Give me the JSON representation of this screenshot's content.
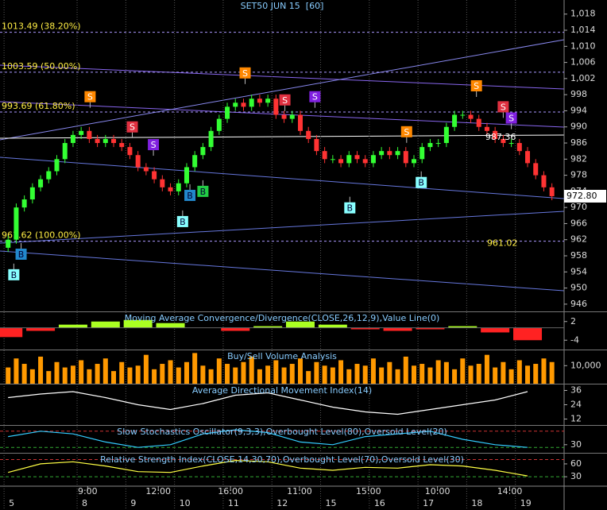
{
  "chart_data": [
    {
      "type": "candlestick",
      "title": "SET50 JUN 15  [60]",
      "xlim": [
        -1,
        68.5
      ],
      "ylim": [
        944.2,
        1021.5
      ],
      "yticks": [
        946,
        950,
        954,
        958,
        962,
        966,
        970,
        974,
        978,
        982,
        986,
        990,
        994,
        998,
        {
          "value": 1002,
          "label": "1,002"
        },
        {
          "value": 1006,
          "label": "1,006"
        },
        {
          "value": 1010,
          "label": "1,010"
        },
        {
          "value": 1014,
          "label": "1,014"
        },
        {
          "value": 1018,
          "label": "1,018"
        }
      ],
      "open": [
        960,
        962,
        970,
        972,
        975,
        977,
        979,
        982,
        986,
        988,
        989,
        987,
        986,
        987,
        986,
        985,
        983,
        980,
        979,
        977,
        975,
        974,
        976,
        980,
        983,
        985,
        989,
        992,
        995,
        996,
        995,
        997,
        996,
        997,
        993,
        992,
        993,
        989,
        987,
        984,
        982,
        982,
        981,
        983,
        982,
        981,
        983,
        984,
        983,
        984,
        981,
        982,
        985,
        986,
        986,
        990,
        993,
        993,
        992,
        990,
        989,
        987,
        986,
        986,
        984,
        981,
        978,
        975
      ],
      "high": [
        963,
        971,
        973,
        976,
        978,
        980,
        983,
        987,
        989,
        990,
        990,
        988,
        988,
        988,
        987,
        986,
        984,
        981,
        980,
        978,
        976,
        977,
        981,
        984,
        986,
        990,
        993,
        996,
        997,
        997,
        998,
        998,
        998,
        998,
        994,
        994,
        994,
        990,
        988,
        985,
        983,
        983,
        984,
        984,
        983,
        984,
        985,
        985,
        985,
        985,
        983,
        986,
        987,
        987,
        991,
        994,
        994,
        994,
        993,
        991,
        990,
        988,
        987,
        987,
        985,
        982,
        979,
        976
      ],
      "low": [
        959,
        961,
        969,
        971,
        974,
        976,
        978,
        981,
        985,
        987,
        986,
        985,
        985,
        985,
        984,
        982,
        979,
        978,
        976,
        974,
        973,
        973,
        975,
        979,
        982,
        984,
        988,
        991,
        994,
        994,
        994,
        995,
        995,
        992,
        991,
        991,
        988,
        986,
        983,
        981,
        981,
        980,
        980,
        981,
        980,
        980,
        982,
        982,
        982,
        980,
        980,
        981,
        984,
        985,
        985,
        989,
        992,
        991,
        989,
        988,
        986,
        985,
        985,
        983,
        980,
        977,
        974,
        971.8
      ],
      "close": [
        962,
        970,
        972,
        975,
        977,
        979,
        982,
        986,
        988,
        989,
        987,
        986,
        987,
        986,
        985,
        983,
        980,
        979,
        977,
        975,
        974,
        976,
        980,
        983,
        985,
        989,
        992,
        995,
        996,
        995,
        997,
        996,
        997,
        993,
        992,
        993,
        989,
        987,
        984,
        982,
        982,
        981,
        983,
        982,
        981,
        983,
        984,
        983,
        984,
        981,
        982,
        985,
        986,
        986,
        990,
        993,
        993,
        992,
        990,
        989,
        987,
        986,
        986,
        984,
        981,
        978,
        975,
        972.8
      ],
      "up_color": "#33ff33",
      "down_color": "#ff3333",
      "fib_levels": [
        {
          "value": 1013.49,
          "label": "1013.49 (38.20%)"
        },
        {
          "value": 1003.59,
          "label": "1003.59 (50.00%)"
        },
        {
          "value": 993.69,
          "label": "993.69 (61.80%)"
        },
        {
          "value": 961.62,
          "label": "961.62 (100.00%)"
        }
      ],
      "annotations": [
        {
          "x": 59,
          "y": 961.02
        },
        {
          "x": 58.8,
          "y": 987.36
        }
      ],
      "last_price": {
        "value": 972.8,
        "label": "972.80"
      },
      "signals": [
        {
          "label": "S",
          "x": 10.1,
          "y": 997.5,
          "color": "#ff8800"
        },
        {
          "label": "S",
          "x": 15.3,
          "y": 990,
          "color": "#e03040"
        },
        {
          "label": "S",
          "x": 17.9,
          "y": 985.6,
          "color": "#8020e0"
        },
        {
          "label": "B",
          "x": 21.5,
          "y": 966.5,
          "color": "#88ffff"
        },
        {
          "label": "B",
          "x": 22.4,
          "y": 973,
          "color": "#2288cc"
        },
        {
          "label": "B",
          "x": 24,
          "y": 974,
          "color": "#22cc44"
        },
        {
          "label": "S",
          "x": 29.2,
          "y": 1003.4,
          "color": "#ff8800"
        },
        {
          "label": "S",
          "x": 34.1,
          "y": 996.7,
          "color": "#e03040"
        },
        {
          "label": "S",
          "x": 37.8,
          "y": 997.5,
          "color": "#8020e0"
        },
        {
          "label": "B",
          "x": 42.1,
          "y": 969.9,
          "color": "#88ffff"
        },
        {
          "label": "S",
          "x": 49.1,
          "y": 988.8,
          "color": "#ff8800"
        },
        {
          "label": "B",
          "x": 50.9,
          "y": 976.2,
          "color": "#88ffff"
        },
        {
          "label": "S",
          "x": 57.7,
          "y": 1000.2,
          "color": "#ff8800"
        },
        {
          "label": "S",
          "x": 61,
          "y": 995,
          "color": "#e03040"
        },
        {
          "label": "S",
          "x": 62,
          "y": 992.2,
          "color": "#8020e0"
        },
        {
          "label": "B",
          "x": 1.6,
          "y": 958.4,
          "color": "#2288cc"
        },
        {
          "label": "B",
          "x": 0.7,
          "y": 953.3,
          "color": "#88ffff"
        }
      ],
      "day_ticks": [
        {
          "value": -0.5,
          "label": "5"
        },
        {
          "value": 8.5,
          "label": "8"
        },
        {
          "value": 14.5,
          "label": "9"
        },
        {
          "value": 20.5,
          "label": "10"
        },
        {
          "value": 26.5,
          "label": "11"
        },
        {
          "value": 32.5,
          "label": "12"
        },
        {
          "value": 38.5,
          "label": "15"
        },
        {
          "value": 44.5,
          "label": "16"
        },
        {
          "value": 50.5,
          "label": "17"
        },
        {
          "value": 56.5,
          "label": "18"
        },
        {
          "value": 62.5,
          "label": "19"
        }
      ],
      "time_ticks": [
        {
          "value": 9.8,
          "label": "9:00"
        },
        {
          "value": 18.5,
          "label": "12:00"
        },
        {
          "value": 27.4,
          "label": "16:00"
        },
        {
          "value": 35.9,
          "label": "11:00"
        },
        {
          "value": 44.4,
          "label": "15:00"
        },
        {
          "value": 52.9,
          "label": "10:00"
        },
        {
          "value": 61.8,
          "label": "14:00"
        }
      ]
    },
    {
      "type": "bar",
      "title": "Moving Average Convergence/Divergence(CLOSE,26,12,9),Value Line(0)",
      "ylim": [
        -7,
        5
      ],
      "yticks": [
        2,
        -4
      ],
      "x": [
        0,
        4,
        8,
        12,
        16,
        20,
        24,
        28,
        32,
        36,
        40,
        44,
        48,
        52,
        56,
        60,
        64
      ],
      "values": [
        -3,
        -1,
        1,
        2,
        2.5,
        1.5,
        0,
        -1,
        0.5,
        2,
        1,
        -0.5,
        -1,
        -0.5,
        0.5,
        -1.5,
        -4
      ],
      "up_color": "#aaff22",
      "down_color": "#ff2222"
    },
    {
      "type": "volume",
      "title": "Buy/Sell Volume Analysis",
      "ylim": [
        0,
        18500
      ],
      "yticks": [
        {
          "value": 10000,
          "label": "10,000"
        }
      ],
      "color": "#ff9900",
      "values": [
        9000,
        14000,
        11000,
        8000,
        15000,
        7000,
        12000,
        9000,
        10000,
        13000,
        8000,
        11000,
        14000,
        7000,
        12000,
        9000,
        10000,
        16000,
        8000,
        11000,
        13000,
        9000,
        12000,
        17000,
        10000,
        8000,
        14000,
        11000,
        9000,
        12000,
        15000,
        8000,
        10000,
        13000,
        9000,
        11000,
        14000,
        7000,
        12000,
        10000,
        9000,
        13000,
        8000,
        11000,
        10000,
        14000,
        9000,
        12000,
        8000,
        15000,
        10000,
        11000,
        9000,
        13000,
        12000,
        8000,
        14000,
        10000,
        11000,
        16000,
        9000,
        12000,
        8000,
        13000,
        10000,
        11000,
        14000,
        12000
      ]
    },
    {
      "type": "line",
      "title": "Average Directional Movement Index(14)",
      "ylim": [
        7,
        41
      ],
      "yticks": [
        36,
        24,
        12
      ],
      "color": "#ffffff",
      "x": [
        0,
        4,
        8,
        12,
        16,
        20,
        24,
        28,
        32,
        36,
        40,
        44,
        48,
        52,
        56,
        60,
        64
      ],
      "values": [
        30,
        33,
        35,
        30,
        24,
        20,
        25,
        32,
        34,
        28,
        22,
        18,
        16,
        20,
        24,
        28,
        35
      ]
    },
    {
      "type": "line",
      "title": "Slow Stochastics Oscillator(9,3,3),Overbought Level(80),Oversold Level(20)",
      "ylim": [
        0,
        100
      ],
      "yticks": [
        30
      ],
      "levels": [
        80,
        20
      ],
      "color": "#33ccff",
      "x": [
        0,
        4,
        8,
        12,
        16,
        20,
        24,
        28,
        32,
        36,
        40,
        44,
        48,
        52,
        56,
        60,
        64
      ],
      "values": [
        60,
        80,
        70,
        40,
        20,
        30,
        70,
        85,
        75,
        40,
        30,
        60,
        70,
        80,
        50,
        30,
        20
      ]
    },
    {
      "type": "line",
      "title": "Relative Strength Index(CLOSE,14,30,70),Overbought Level(70),Oversold Level(30)",
      "ylim": [
        8,
        84
      ],
      "yticks": [
        60,
        30
      ],
      "levels": [
        70,
        30
      ],
      "color": "#ffff44",
      "x": [
        0,
        4,
        8,
        12,
        16,
        20,
        24,
        28,
        32,
        36,
        40,
        44,
        48,
        52,
        56,
        60,
        64
      ],
      "values": [
        40,
        60,
        65,
        55,
        42,
        40,
        55,
        68,
        65,
        50,
        45,
        52,
        50,
        58,
        55,
        45,
        32
      ]
    }
  ]
}
